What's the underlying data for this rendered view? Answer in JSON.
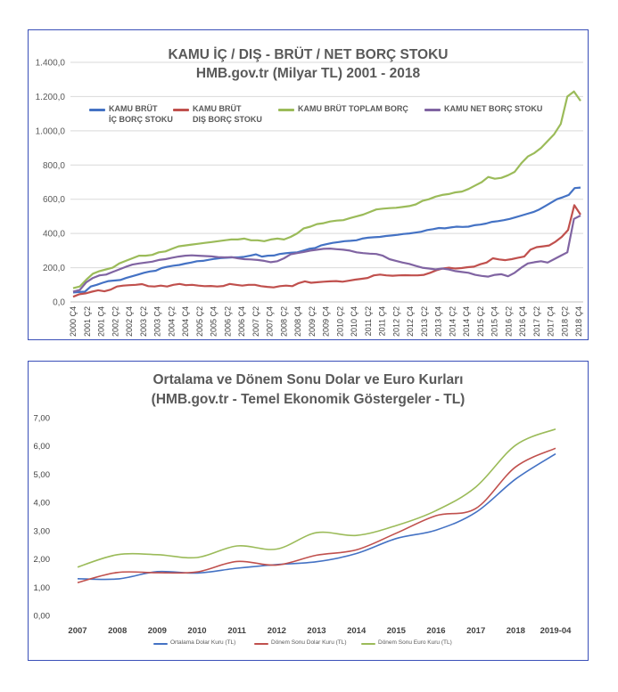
{
  "charts": [
    {
      "title_line1": "KAMU İÇ / DIŞ - BRÜT / NET BORÇ STOKU",
      "title_line2": "HMB.gov.tr    (Milyar TL)  2001 - 2018",
      "legend": [
        {
          "label": "KAMU BRÜT\nİÇ BORÇ STOKU",
          "color": "#4472c4"
        },
        {
          "label": "KAMU BRÜT\nDIŞ BORÇ STOKU",
          "color": "#c0504d"
        },
        {
          "label": "KAMU BRÜT TOPLAM BORÇ",
          "color": "#9bbb59"
        },
        {
          "label": "KAMU NET BORÇ STOKU",
          "color": "#8064a2"
        }
      ]
    },
    {
      "title_line1": "Ortalama ve Dönem Sonu Dolar ve Euro Kurları",
      "title_line2": "(HMB.gov.tr - Temel Ekonomik Göstergeler - TL)",
      "legend": [
        {
          "label": "Ortalama Dolar Kuru (TL)",
          "color": "#4472c4"
        },
        {
          "label": "Dönem Sonu Dolar Kuru (TL)",
          "color": "#c0504d"
        },
        {
          "label": "Dönem Sonu Euro Kuru (TL)",
          "color": "#9bbb59"
        }
      ]
    }
  ],
  "chart_data": [
    {
      "type": "line",
      "title": "KAMU İÇ / DIŞ - BRÜT / NET BORÇ STOKU HMB.gov.tr (Milyar TL) 2001 - 2018",
      "ylim": [
        0,
        1400
      ],
      "yticks": [
        "0,0",
        "200,0",
        "400,0",
        "600,0",
        "800,0",
        "1.000,0",
        "1.200,0",
        "1.400,0"
      ],
      "xticks": [
        "2000 Ç4",
        "2001 Ç2",
        "2001 Ç4",
        "2002 Ç2",
        "2002 Ç4",
        "2003 Ç2",
        "2003 Ç4",
        "2004 Ç2",
        "2004 Ç4",
        "2005 Ç2",
        "2005 Ç4",
        "2006 Ç2",
        "2006 Ç4",
        "2007 Ç2",
        "2007 Ç4",
        "2008 Ç2",
        "2008 Ç4",
        "2009 Ç2",
        "2009 Ç4",
        "2010 Ç2",
        "2010 Ç4",
        "2011 Ç2",
        "2011 Ç4",
        "2012 Ç2",
        "2012 Ç4",
        "2013 Ç2",
        "2013 Ç4",
        "2014 Ç2",
        "2014 Ç4",
        "2015 Ç2",
        "2015 Ç4",
        "2016 Ç2",
        "2016 Ç4",
        "2017 Ç2",
        "2017 Ç4",
        "2018 Ç2",
        "2018 Ç4"
      ],
      "grid": true,
      "series": [
        {
          "name": "KAMU BRÜT İÇ BORÇ STOKU",
          "color": "#4472c4",
          "values": [
            55,
            58,
            60,
            90,
            100,
            112,
            122,
            125,
            128,
            140,
            150,
            160,
            170,
            178,
            182,
            198,
            206,
            212,
            216,
            224,
            230,
            238,
            240,
            246,
            252,
            256,
            258,
            260,
            260,
            264,
            270,
            278,
            265,
            270,
            271,
            280,
            284,
            288,
            290,
            300,
            310,
            315,
            330,
            338,
            345,
            350,
            355,
            357,
            360,
            370,
            375,
            378,
            380,
            385,
            388,
            392,
            397,
            400,
            405,
            410,
            420,
            425,
            432,
            430,
            435,
            440,
            438,
            440,
            448,
            452,
            458,
            468,
            472,
            478,
            485,
            495,
            505,
            515,
            525,
            540,
            560,
            580,
            600,
            612,
            625,
            665,
            668
          ]
        },
        {
          "name": "KAMU BRÜT DIŞ BORÇ STOKU",
          "color": "#c0504d",
          "values": [
            30,
            45,
            50,
            60,
            68,
            62,
            72,
            90,
            95,
            98,
            100,
            104,
            92,
            90,
            95,
            90,
            100,
            105,
            98,
            100,
            95,
            92,
            93,
            90,
            93,
            105,
            100,
            95,
            100,
            100,
            92,
            88,
            85,
            92,
            95,
            92,
            110,
            120,
            112,
            115,
            118,
            120,
            122,
            118,
            124,
            130,
            135,
            140,
            155,
            160,
            155,
            153,
            155,
            156,
            155,
            155,
            158,
            170,
            185,
            195,
            200,
            195,
            198,
            203,
            206,
            220,
            230,
            255,
            248,
            244,
            250,
            258,
            265,
            305,
            320,
            325,
            330,
            352,
            380,
            420,
            565,
            510
          ]
        },
        {
          "name": "KAMU BRÜT TOPLAM BORÇ",
          "color": "#9bbb59",
          "values": [
            80,
            90,
            130,
            165,
            180,
            190,
            200,
            225,
            240,
            255,
            270,
            270,
            275,
            290,
            295,
            310,
            325,
            330,
            335,
            340,
            345,
            350,
            355,
            360,
            365,
            365,
            370,
            360,
            360,
            355,
            365,
            370,
            365,
            380,
            400,
            430,
            440,
            455,
            460,
            470,
            475,
            478,
            490,
            500,
            510,
            525,
            540,
            545,
            548,
            550,
            555,
            560,
            570,
            590,
            600,
            615,
            625,
            630,
            640,
            645,
            660,
            680,
            700,
            730,
            720,
            725,
            740,
            760,
            810,
            850,
            870,
            900,
            940,
            980,
            1040,
            1200,
            1230,
            1175
          ]
        },
        {
          "name": "KAMU NET BORÇ STOKU",
          "color": "#8064a2",
          "values": [
            60,
            70,
            115,
            140,
            155,
            160,
            175,
            190,
            205,
            218,
            225,
            230,
            235,
            245,
            250,
            258,
            265,
            270,
            272,
            270,
            268,
            266,
            262,
            260,
            262,
            255,
            250,
            248,
            245,
            240,
            232,
            238,
            255,
            278,
            285,
            292,
            300,
            305,
            310,
            312,
            308,
            305,
            300,
            290,
            285,
            282,
            280,
            270,
            250,
            240,
            230,
            222,
            210,
            200,
            195,
            190,
            195,
            190,
            180,
            175,
            170,
            158,
            152,
            148,
            158,
            162,
            150,
            170,
            200,
            225,
            232,
            238,
            230,
            250,
            270,
            290,
            485,
            505
          ]
        }
      ]
    },
    {
      "type": "line",
      "title": "Ortalama ve Dönem Sonu Dolar ve Euro Kurları (HMB.gov.tr - Temel Ekonomik Göstergeler - TL)",
      "ylim": [
        0,
        7
      ],
      "yticks": [
        "0,00",
        "1,00",
        "2,00",
        "3,00",
        "4,00",
        "5,00",
        "6,00",
        "7,00"
      ],
      "categories": [
        "2007",
        "2008",
        "2009",
        "2010",
        "2011",
        "2012",
        "2013",
        "2014",
        "2015",
        "2016",
        "2017",
        "2018",
        "2019-04"
      ],
      "grid": false,
      "series": [
        {
          "name": "Ortalama Dolar Kuru (TL)",
          "color": "#4472c4",
          "values": [
            1.3,
            1.29,
            1.55,
            1.5,
            1.67,
            1.8,
            1.9,
            2.19,
            2.72,
            3.02,
            3.65,
            4.83,
            5.72
          ]
        },
        {
          "name": "Dönem Sonu Dolar Kuru (TL)",
          "color": "#c0504d",
          "values": [
            1.16,
            1.52,
            1.51,
            1.54,
            1.91,
            1.78,
            2.13,
            2.32,
            2.91,
            3.53,
            3.79,
            5.26,
            5.92
          ]
        },
        {
          "name": "Dönem Sonu Euro Kuru (TL)",
          "color": "#9bbb59",
          "values": [
            1.71,
            2.15,
            2.15,
            2.05,
            2.46,
            2.35,
            2.93,
            2.83,
            3.18,
            3.71,
            4.55,
            6.03,
            6.6
          ]
        }
      ]
    }
  ]
}
